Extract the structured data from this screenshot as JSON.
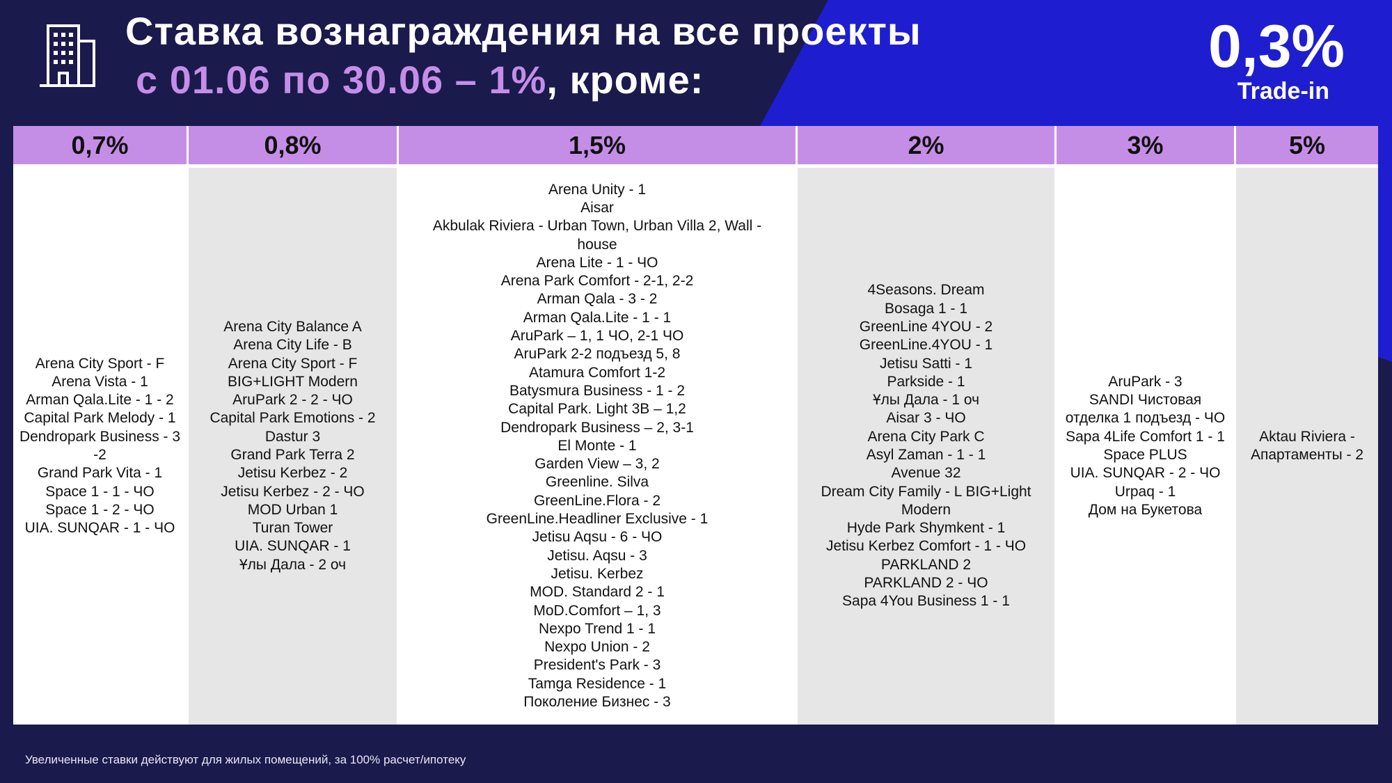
{
  "header": {
    "title_line1": "Ставка вознаграждения на все проекты",
    "title_line2_highlight": "с 01.06 по 30.06 – 1%",
    "title_line2_rest": ", кроме:",
    "tradein_rate": "0,3%",
    "tradein_label": "Trade-in"
  },
  "icons": {
    "building": "building-icon"
  },
  "colors": {
    "background": "#1b1a4d",
    "accent_blue": "#1e1ed0",
    "header_purple": "#c58ee6",
    "highlight_text": "#c58ee6",
    "cell_gray": "#e6e6e6"
  },
  "table": {
    "columns": [
      {
        "rate": "0,7%",
        "items": [
          "Arena City Sport - F",
          "Arena Vista - 1",
          "Arman Qala.Lite - 1 - 2",
          "Capital Park Melody - 1",
          "Dendropark Business - 3 -2",
          "Grand Park Vita - 1",
          "Space 1 - 1 - ЧО",
          "Space 1 - 2 - ЧО",
          "UIA. SUNQAR - 1 - ЧО"
        ]
      },
      {
        "rate": "0,8%",
        "items": [
          "Arena City Balance A",
          "Arena City Life - B",
          "Arena City Sport - F",
          "BIG+LIGHT Modern",
          "AruPark 2 - 2 - ЧО",
          "Capital Park Emotions - 2",
          "Dastur 3",
          "Grand Park Terra 2",
          "Jetisu Kerbez - 2",
          "Jetisu Kerbez - 2 - ЧО",
          "MOD Urban 1",
          "Turan Tower",
          "UIA. SUNQAR - 1",
          "Ұлы Дала - 2 оч"
        ]
      },
      {
        "rate": "1,5%",
        "items": [
          "Arena Unity - 1",
          "Aisar",
          "Akbulak Riviera - Urban Town, Urban Villa 2, Wall - house",
          "Arena Lite - 1 - ЧО",
          "Arena Park Comfort - 2-1, 2-2",
          "Arman Qala - 3 - 2",
          "Arman Qala.Lite - 1 - 1",
          "AruPark – 1, 1 ЧО, 2-1 ЧО",
          "AruPark 2-2 подъезд 5, 8",
          "Atamura Comfort 1-2",
          "Batysmura Business - 1 - 2",
          "Capital Park. Light 3B – 1,2",
          "Dendropark Business – 2, 3-1",
          "El Monte - 1",
          "Garden View – 3, 2",
          "Greenline. Silva",
          "GreenLine.Flora - 2",
          "GreenLine.Headliner Exclusive - 1",
          "Jetisu Aqsu - 6 - ЧО",
          "Jetisu. Aqsu - 3",
          "Jetisu. Kerbez",
          "MOD. Standard 2 - 1",
          "MoD.Comfort – 1, 3",
          "Nexpo Trend 1 - 1",
          "Nexpo Union - 2",
          "President's Park - 3",
          "Tamga Residence - 1",
          "Поколение Бизнес - 3"
        ]
      },
      {
        "rate": "2%",
        "items": [
          "4Seasons. Dream",
          "Bosaga 1 - 1",
          "GreenLine 4YOU - 2",
          "GreenLine.4YOU - 1",
          "Jetisu Satti - 1",
          "Parkside - 1",
          "Ұлы Дала - 1 оч",
          "Aisar 3 - ЧО",
          "Arena City Park C",
          "Asyl Zaman - 1 - 1",
          "Avenue 32",
          "Dream City Family - L BIG+Light Modern",
          "Hyde Park Shymkent - 1",
          "Jetisu Kerbez Comfort - 1 - ЧО",
          "PARKLAND 2",
          "PARKLAND 2 - ЧО",
          "Sapa 4You Business 1 - 1"
        ]
      },
      {
        "rate": "3%",
        "items": [
          "AruPark - 3",
          "SANDI Чистовая отделка 1 подъезд - ЧО",
          "Sapa 4Life Comfort 1 - 1",
          "Space PLUS",
          "UIA. SUNQAR - 2 - ЧО",
          "Urpaq - 1",
          "Дом на Букетова"
        ]
      },
      {
        "rate": "5%",
        "items": [
          "Aktau Riviera - Апартаменты - 2"
        ]
      }
    ]
  },
  "footnote": "Увеличенные ставки действуют для жилых помещений, за 100% расчет/ипотеку"
}
